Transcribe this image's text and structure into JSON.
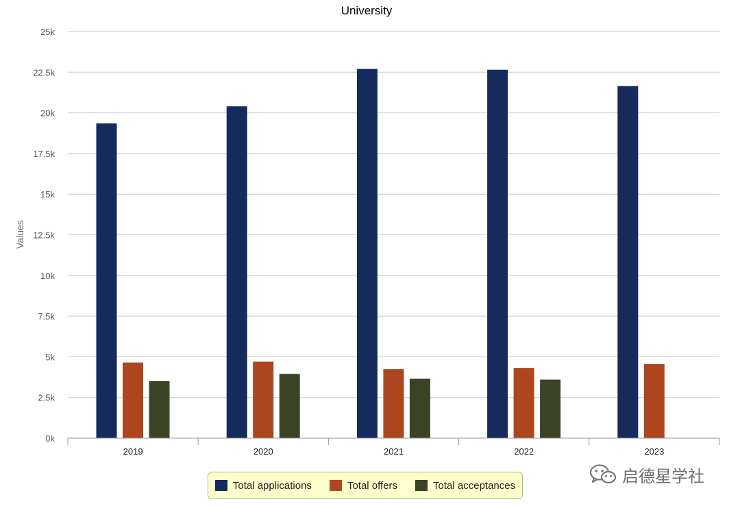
{
  "chart_data": {
    "type": "bar",
    "title": "University",
    "xlabel": "",
    "ylabel": "Values",
    "ylim": [
      0,
      25000
    ],
    "yticks": [
      0,
      2500,
      5000,
      7500,
      10000,
      12500,
      15000,
      17500,
      20000,
      22500,
      25000
    ],
    "ytick_labels": [
      "0k",
      "2.5k",
      "5k",
      "7.5k",
      "10k",
      "12.5k",
      "15k",
      "17.5k",
      "20k",
      "22.5k",
      "25k"
    ],
    "categories": [
      "2019",
      "2020",
      "2021",
      "2022",
      "2023"
    ],
    "grid": true,
    "legend_position": "bottom-center",
    "series": [
      {
        "name": "Total applications",
        "color": "#152b5c",
        "values": [
          19350,
          20400,
          22700,
          22650,
          21650
        ]
      },
      {
        "name": "Total offers",
        "color": "#ad461f",
        "values": [
          4650,
          4700,
          4250,
          4300,
          4550
        ]
      },
      {
        "name": "Total acceptances",
        "color": "#3a4424",
        "values": [
          3500,
          3950,
          3650,
          3600,
          null
        ]
      }
    ]
  },
  "watermark": {
    "text": "启德星学社",
    "icon": "wechat-icon"
  }
}
